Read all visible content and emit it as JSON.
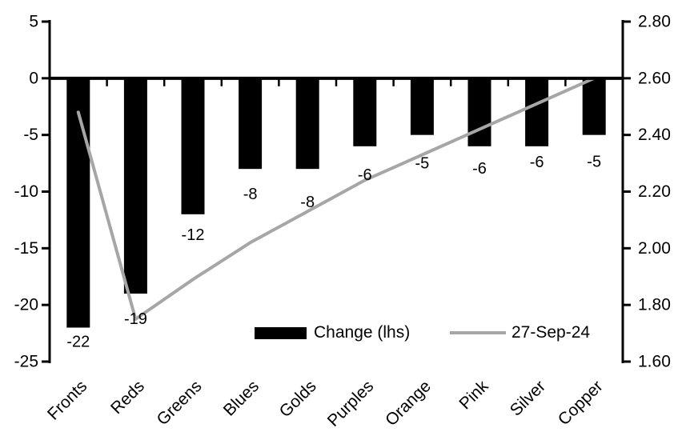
{
  "page": {
    "background": "#ffffff"
  },
  "chart_data": {
    "type": "combo-bar-line",
    "title": "",
    "xlabel": "",
    "ylabel": "",
    "grid": "off",
    "legend_position": "inside-bottom-center",
    "categories": [
      "Fronts",
      "Reds",
      "Greens",
      "Blues",
      "Golds",
      "Purples",
      "Orange",
      "Pink",
      "Silver",
      "Copper"
    ],
    "series": [
      {
        "name": "Change (lhs)",
        "type": "bar",
        "axis": "left",
        "color": "#000000",
        "values": [
          -22,
          -19,
          -12,
          -8,
          -8,
          -6,
          -5,
          -6,
          -6,
          -5
        ],
        "data_labels": [
          "-22",
          "-19",
          "-12",
          "-8",
          "-8",
          "-6",
          "-5",
          "-6",
          "-6",
          "-5"
        ]
      },
      {
        "name": "27-Sep-24",
        "type": "line",
        "axis": "right",
        "color": "#A6A6A6",
        "values": [
          2.48,
          1.75,
          1.89,
          2.02,
          2.13,
          2.24,
          2.33,
          2.42,
          2.51,
          2.6
        ]
      }
    ],
    "left_axis": {
      "min": -25,
      "max": 5,
      "step": 5,
      "tick_labels": [
        "5",
        "0",
        "-5",
        "-10",
        "-15",
        "-20",
        "-25"
      ]
    },
    "right_axis": {
      "min": 1.6,
      "max": 2.8,
      "step": 0.2,
      "tick_labels": [
        "2.80",
        "2.60",
        "2.40",
        "2.20",
        "2.00",
        "1.80",
        "1.60"
      ]
    },
    "legend": [
      {
        "label": "Change (lhs)",
        "swatch": "bar",
        "color": "#000000"
      },
      {
        "label": "27-Sep-24",
        "swatch": "line",
        "color": "#A6A6A6"
      }
    ]
  }
}
